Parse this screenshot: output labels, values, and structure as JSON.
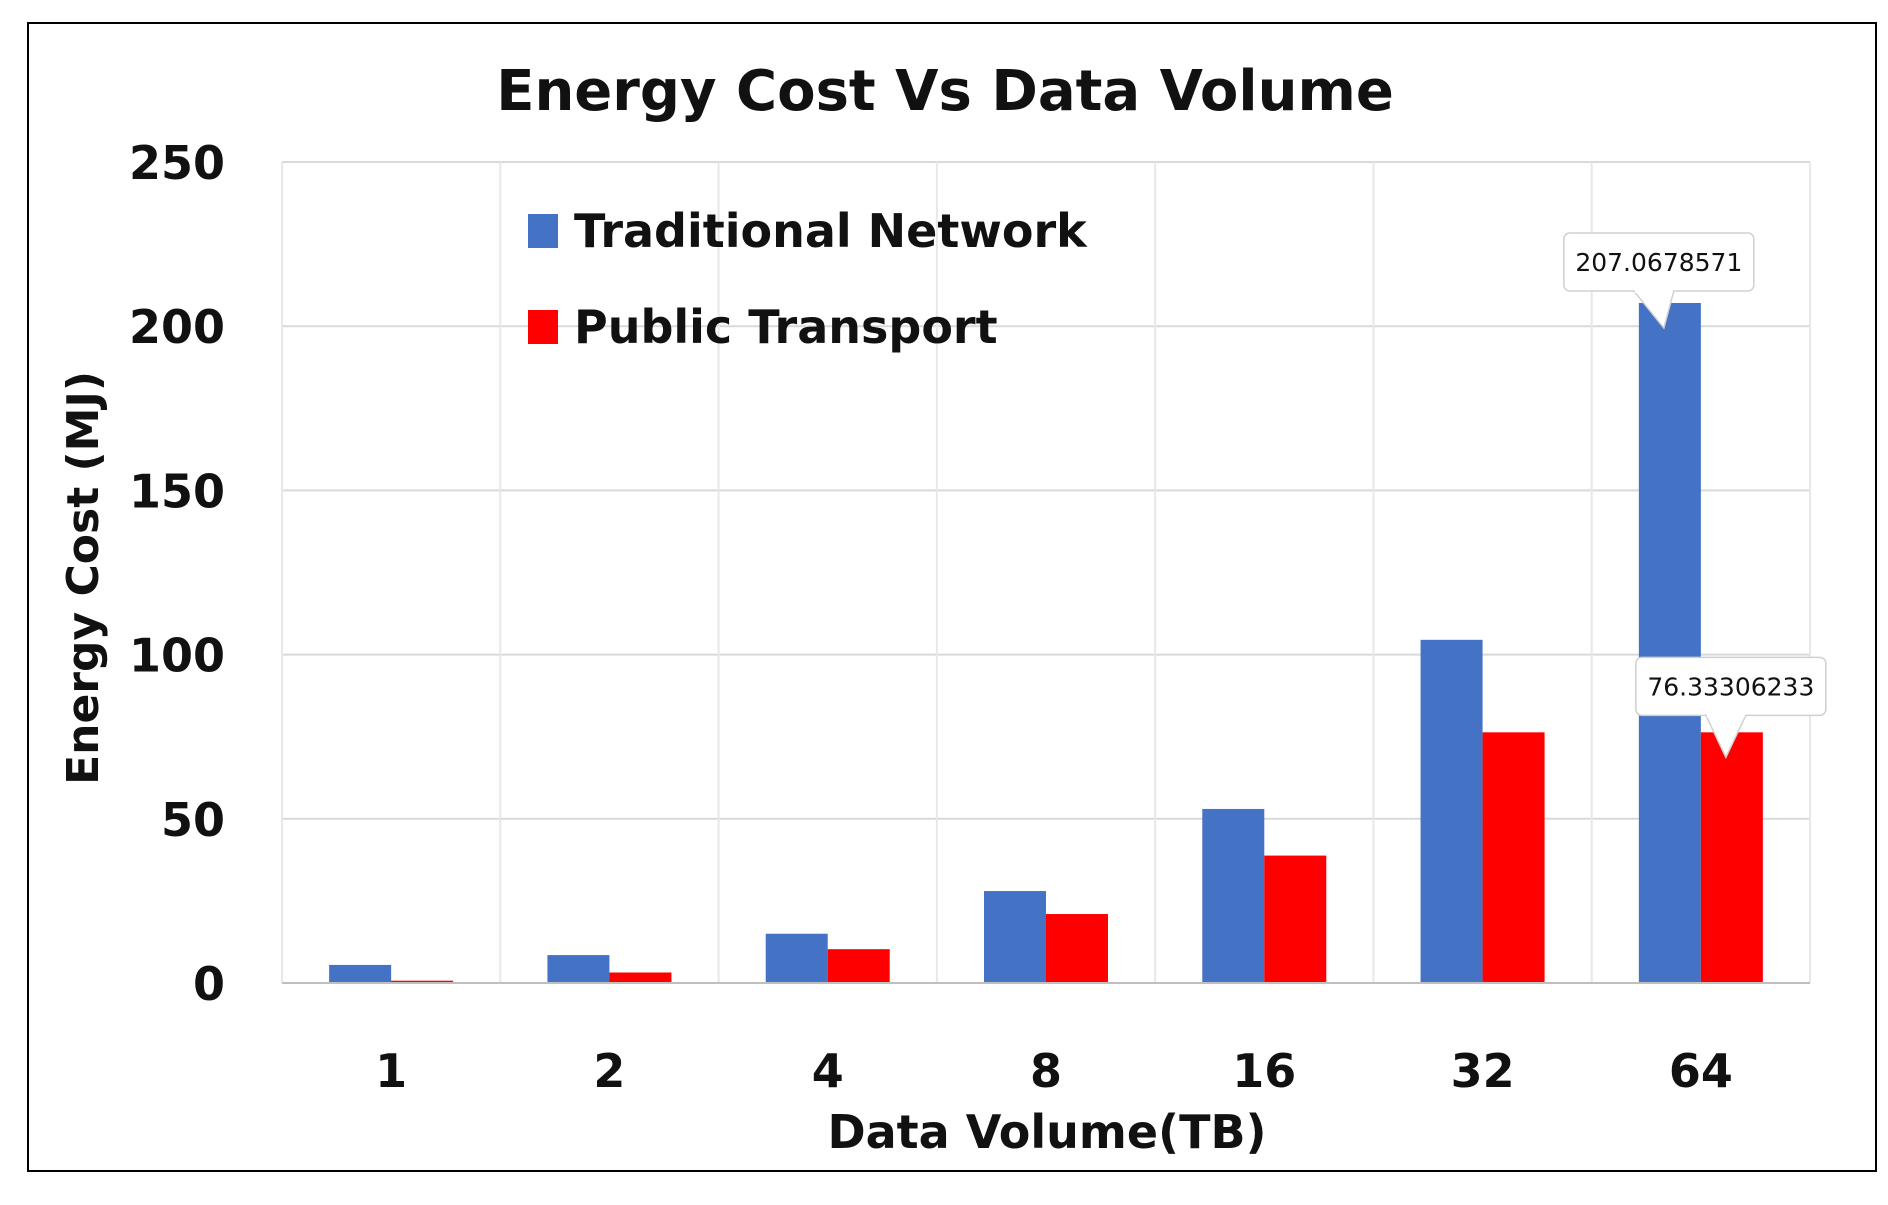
{
  "chart_data": {
    "type": "bar",
    "title": "Energy Cost Vs Data Volume",
    "xlabel": "Data Volume(TB)",
    "ylabel": "Energy Cost (MJ)",
    "categories": [
      "1",
      "2",
      "4",
      "8",
      "16",
      "32",
      "64"
    ],
    "series": [
      {
        "name": "Traditional Network",
        "color": "#4472C4",
        "values": [
          5.5,
          8.5,
          15,
          28,
          53,
          104.5,
          207.0678571
        ]
      },
      {
        "name": "Public Transport",
        "color": "#FF0000",
        "values": [
          0.7,
          3.2,
          10.3,
          21,
          38.8,
          76.33306233,
          76.33306233
        ]
      }
    ],
    "ylim": [
      0,
      250
    ],
    "yticks": [
      0,
      50,
      100,
      150,
      200,
      250
    ],
    "grid": true,
    "legend_position": "top-left",
    "annotations": [
      {
        "series": 0,
        "category": "64",
        "text": "207.0678571"
      },
      {
        "series": 1,
        "category": "64",
        "text": "76.33306233"
      }
    ]
  }
}
